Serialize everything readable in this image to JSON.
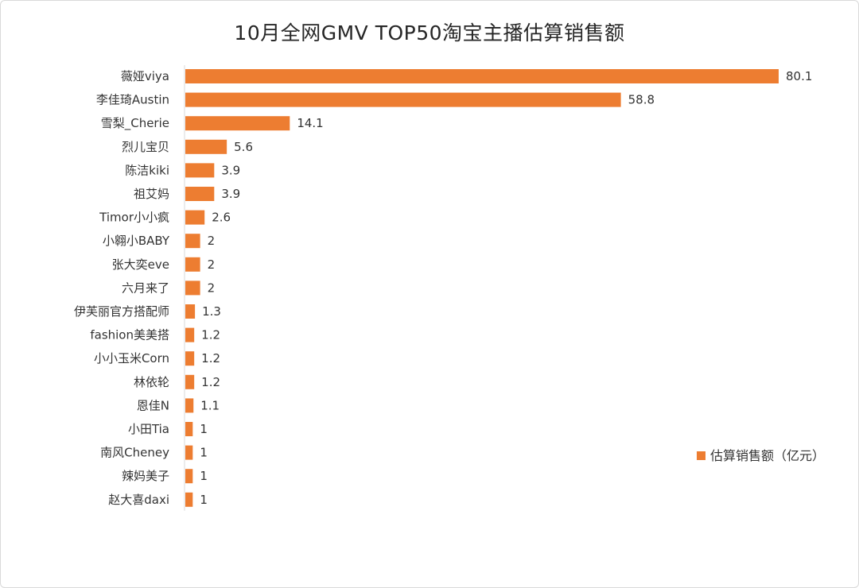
{
  "chart_data": {
    "type": "bar",
    "orientation": "horizontal",
    "title": "10月全网GMV TOP50淘宝主播估算销售额",
    "categories": [
      "薇娅viya",
      "李佳琦Austin",
      "雪梨_Cherie",
      "烈儿宝贝",
      "陈洁kiki",
      "祖艾妈",
      "Timor小小疯",
      "小翱小BABY",
      "张大奕eve",
      "六月来了",
      "伊芙丽官方搭配师",
      "fashion美美搭",
      "小小玉米Corn",
      "林依轮",
      "恩佳N",
      "小田Tia",
      "南风Cheney",
      "辣妈美子",
      "赵大喜daxi"
    ],
    "series": [
      {
        "name": "估算销售额（亿元）",
        "color": "#ED7D31",
        "values": [
          80.1,
          58.8,
          14.1,
          5.6,
          3.9,
          3.9,
          2.6,
          2,
          2,
          2,
          1.3,
          1.2,
          1.2,
          1.2,
          1.1,
          1,
          1,
          1,
          1
        ]
      }
    ],
    "legend_position": "right",
    "grid": false
  }
}
